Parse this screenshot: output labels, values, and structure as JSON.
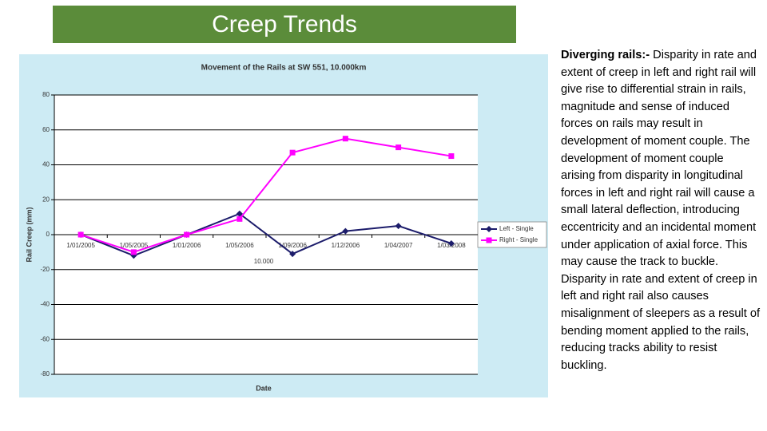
{
  "slide_title": "Creep Trends",
  "text": {
    "lead": "Diverging rails:-",
    "body": "Disparity in rate and extent of creep in left and right rail will give rise to differential strain in rails, magnitude and sense of induced forces on rails may result in development of moment couple. The development of moment couple arising from disparity in longitudinal forces in left and right rail will cause a small lateral deflection, introducing eccentricity and an incidental moment under application of axial force. This may cause the track to buckle. Disparity in rate and extent of creep in left and right rail also causes misalignment of sleepers as a result of bending moment applied to the rails, reducing tracks ability to resist buckling."
  },
  "chart_data": {
    "type": "line",
    "title": "Movement of the Rails at SW 551, 10.000km",
    "x_label": "Date",
    "y_label": "Rail Creep (mm)",
    "annotation": "10.000",
    "categories": [
      "1/01/2005",
      "1/05/2005",
      "1/01/2006",
      "1/05/2006",
      "1/09/2006",
      "1/12/2006",
      "1/04/2007",
      "1/03/2008"
    ],
    "series": [
      {
        "name": "Left - Single",
        "color": "#1c1c6b",
        "marker": "diamond",
        "values": [
          0,
          -12,
          0,
          12,
          -11,
          2,
          5,
          -5
        ]
      },
      {
        "name": "Right - Single",
        "color": "#ff00ff",
        "marker": "square",
        "values": [
          0,
          -10,
          0,
          9,
          47,
          55,
          50,
          45
        ]
      }
    ],
    "ylim": [
      -80,
      80
    ],
    "yticks": [
      -80,
      -60,
      -40,
      -20,
      0,
      20,
      40,
      60,
      80
    ],
    "grid": true,
    "legend": "right"
  }
}
